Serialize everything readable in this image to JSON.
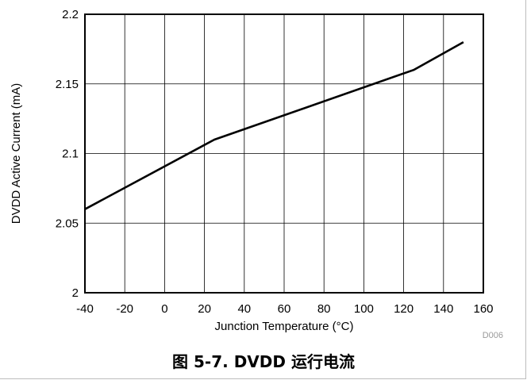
{
  "caption": "图 5-7. DVDD 运行电流",
  "chart_data": {
    "type": "line",
    "title": "",
    "xlabel": "Junction Temperature (°C)",
    "ylabel": "DVDD Active Current (mA)",
    "xlim": [
      -40,
      160
    ],
    "ylim": [
      2,
      2.2
    ],
    "xticks": [
      "-40",
      "-20",
      "0",
      "20",
      "40",
      "60",
      "80",
      "100",
      "120",
      "140",
      "160"
    ],
    "yticks": [
      "2",
      "2.05",
      "2.1",
      "2.15",
      "2.2"
    ],
    "grid": true,
    "note": "D006",
    "series": [
      {
        "x": [
          -40,
          25,
          125,
          150
        ],
        "y": [
          2.06,
          2.11,
          2.16,
          2.18
        ]
      }
    ]
  }
}
